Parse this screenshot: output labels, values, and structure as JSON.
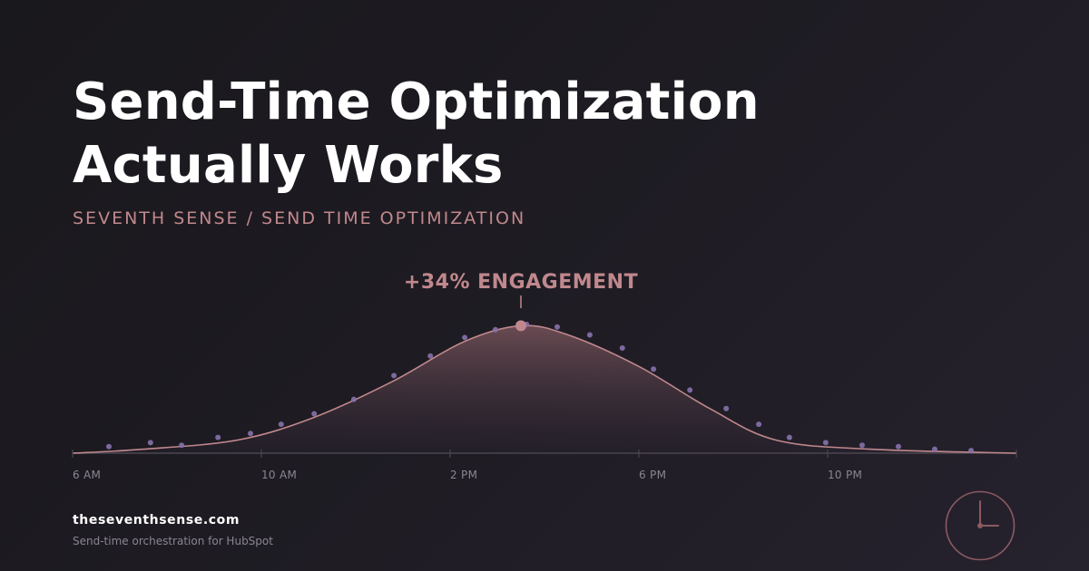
{
  "header": {
    "title_line1": "Send-Time Optimization",
    "title_line2": "Actually Works",
    "subtitle": "SEVENTH SENSE / SEND TIME OPTIMIZATION"
  },
  "chart_data": {
    "type": "area",
    "title": "",
    "annotation": "+34% ENGAGEMENT",
    "x_ticks": [
      "6 AM",
      "10 AM",
      "2 PM",
      "6 PM",
      "10 PM"
    ],
    "xlim": [
      6,
      26
    ],
    "ylim": [
      0,
      1
    ],
    "grid": false,
    "peak": {
      "x": 15.5,
      "y": 0.97
    },
    "curve": [
      {
        "x": 6,
        "y": 0
      },
      {
        "x": 7.5,
        "y": 0.03
      },
      {
        "x": 9.5,
        "y": 0.1
      },
      {
        "x": 11.1,
        "y": 0.27
      },
      {
        "x": 12.8,
        "y": 0.55
      },
      {
        "x": 14.3,
        "y": 0.85
      },
      {
        "x": 15.5,
        "y": 0.97
      },
      {
        "x": 16.5,
        "y": 0.9
      },
      {
        "x": 18,
        "y": 0.66
      },
      {
        "x": 19.5,
        "y": 0.34
      },
      {
        "x": 20.9,
        "y": 0.1
      },
      {
        "x": 22.9,
        "y": 0.03
      },
      {
        "x": 26,
        "y": 0
      }
    ],
    "points": [
      {
        "x": 6.77,
        "y": 0.05
      },
      {
        "x": 7.65,
        "y": 0.08
      },
      {
        "x": 8.31,
        "y": 0.06
      },
      {
        "x": 9.08,
        "y": 0.12
      },
      {
        "x": 9.77,
        "y": 0.15
      },
      {
        "x": 10.42,
        "y": 0.22
      },
      {
        "x": 11.12,
        "y": 0.3
      },
      {
        "x": 11.96,
        "y": 0.41
      },
      {
        "x": 12.81,
        "y": 0.59
      },
      {
        "x": 13.58,
        "y": 0.74
      },
      {
        "x": 14.31,
        "y": 0.88
      },
      {
        "x": 14.96,
        "y": 0.94
      },
      {
        "x": 15.62,
        "y": 0.98
      },
      {
        "x": 16.27,
        "y": 0.96
      },
      {
        "x": 16.96,
        "y": 0.9
      },
      {
        "x": 17.65,
        "y": 0.8
      },
      {
        "x": 18.31,
        "y": 0.64
      },
      {
        "x": 19.08,
        "y": 0.48
      },
      {
        "x": 19.85,
        "y": 0.34
      },
      {
        "x": 20.54,
        "y": 0.22
      },
      {
        "x": 21.19,
        "y": 0.12
      },
      {
        "x": 21.96,
        "y": 0.08
      },
      {
        "x": 22.73,
        "y": 0.06
      },
      {
        "x": 23.5,
        "y": 0.05
      },
      {
        "x": 24.27,
        "y": 0.03
      },
      {
        "x": 25.04,
        "y": 0.02
      }
    ],
    "colors": {
      "line": "#c0888d",
      "point": "#8672ac",
      "axis": "#4a4650",
      "fill_top": "#6e4d55",
      "fill_bottom": "#2a2430"
    }
  },
  "footer": {
    "domain": "theseventhsense.com",
    "tagline": "Send-time orchestration for HubSpot"
  },
  "clock": {
    "icon": "clock-icon",
    "color": "#8a5a62"
  }
}
